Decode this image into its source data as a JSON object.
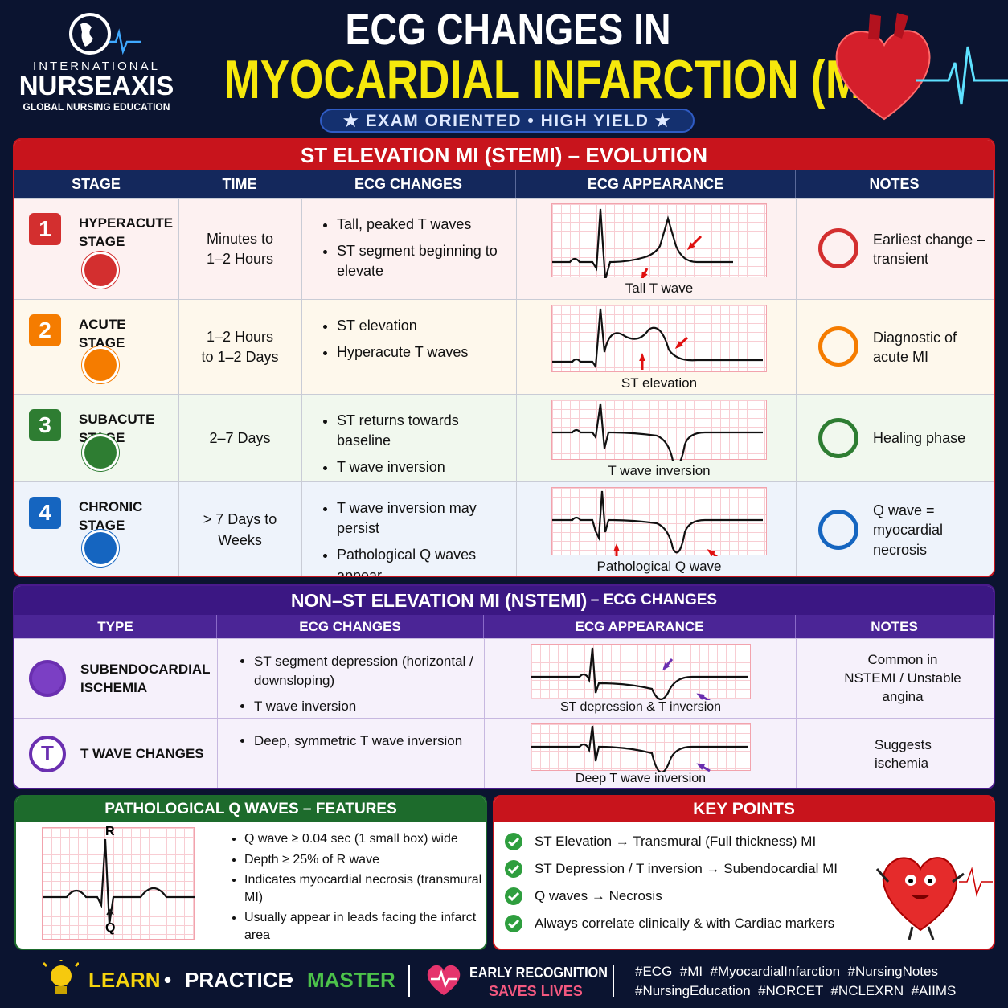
{
  "header": {
    "brand_top": "INTERNATIONAL",
    "brand": "NURSEAXIS",
    "brand_sub": "GLOBAL NURSING EDUCATION",
    "title_line1": "ECG CHANGES IN",
    "title_line2": "MYOCARDIAL INFARCTION (MI)",
    "tagline": "★ EXAM ORIENTED • HIGH YIELD ★"
  },
  "stemi": {
    "title": "ST ELEVATION MI (STEMI) – EVOLUTION",
    "headers": [
      "STAGE",
      "TIME",
      "ECG CHANGES",
      "ECG APPEARANCE",
      "NOTES"
    ],
    "rows": [
      {
        "number": "1",
        "stage": "HYPERACUTE STAGE",
        "time": "Minutes to 1–2 Hours",
        "changes": [
          "Tall, peaked T waves",
          "ST segment beginning to elevate"
        ],
        "ecg_label": "Tall T wave",
        "note": "Earliest change – transient"
      },
      {
        "number": "2",
        "stage": "ACUTE STAGE",
        "time": "1–2 Hours to 1–2 Days",
        "changes": [
          "ST elevation",
          "Hyperacute T waves"
        ],
        "ecg_label": "ST elevation",
        "note": "Diagnostic of acute MI"
      },
      {
        "number": "3",
        "stage": "SUBACUTE STAGE",
        "time": "2–7 Days",
        "changes": [
          "ST returns towards baseline",
          "T wave inversion"
        ],
        "ecg_label": "T wave inversion",
        "note": "Healing phase"
      },
      {
        "number": "4",
        "stage": "CHRONIC STAGE",
        "time": "> 7 Days to Weeks",
        "changes": [
          "T wave inversion may persist",
          "Pathological Q waves appear"
        ],
        "ecg_label": "Pathological Q wave",
        "note": "Q wave = myocardial necrosis"
      }
    ]
  },
  "nstemi": {
    "title": "NON–ST ELEVATION MI (NSTEMI)",
    "title_suffix": "– ECG CHANGES",
    "headers": [
      "TYPE",
      "ECG CHANGES",
      "ECG APPEARANCE",
      "NOTES"
    ],
    "rows": [
      {
        "type": "SUBENDOCARDIAL ISCHEMIA",
        "changes": [
          "ST segment depression (horizontal / downsloping)",
          "T wave inversion"
        ],
        "ecg_label": "ST depression & T inversion",
        "note": "Common in NSTEMI / Unstable angina"
      },
      {
        "icon_letter": "T",
        "type": "T WAVE CHANGES",
        "changes": [
          "Deep, symmetric T wave inversion"
        ],
        "ecg_label": "Deep T wave inversion",
        "note": "Suggests ischemia"
      }
    ]
  },
  "q_waves": {
    "title": "PATHOLOGICAL Q WAVES – FEATURES",
    "label_r": "R",
    "label_q": "Q",
    "features": [
      "Q wave ≥ 0.04 sec (1 small box) wide",
      "Depth ≥ 25% of R wave",
      "Indicates myocardial necrosis (transmural MI)",
      "Usually appear in leads facing the infarct area"
    ]
  },
  "key_points": {
    "title": "KEY POINTS",
    "items": [
      "ST Elevation → Transmural (Full thickness) MI",
      "ST Depression / T inversion → Subendocardial MI",
      "Q waves → Necrosis",
      "Always correlate clinically & with Cardiac markers"
    ]
  },
  "footer": {
    "learn": "LEARN",
    "separator": "•",
    "practice": "PRACTICE",
    "master": "MASTER",
    "early": "EARLY RECOGNITION",
    "saves": "SAVES LIVES",
    "hashtags": [
      "#ECG  #MI  #MyocardialInfarction  #NursingNotes",
      "#NursingEducation  #NORCET  #NCLEXRN  #AIIMS"
    ]
  }
}
